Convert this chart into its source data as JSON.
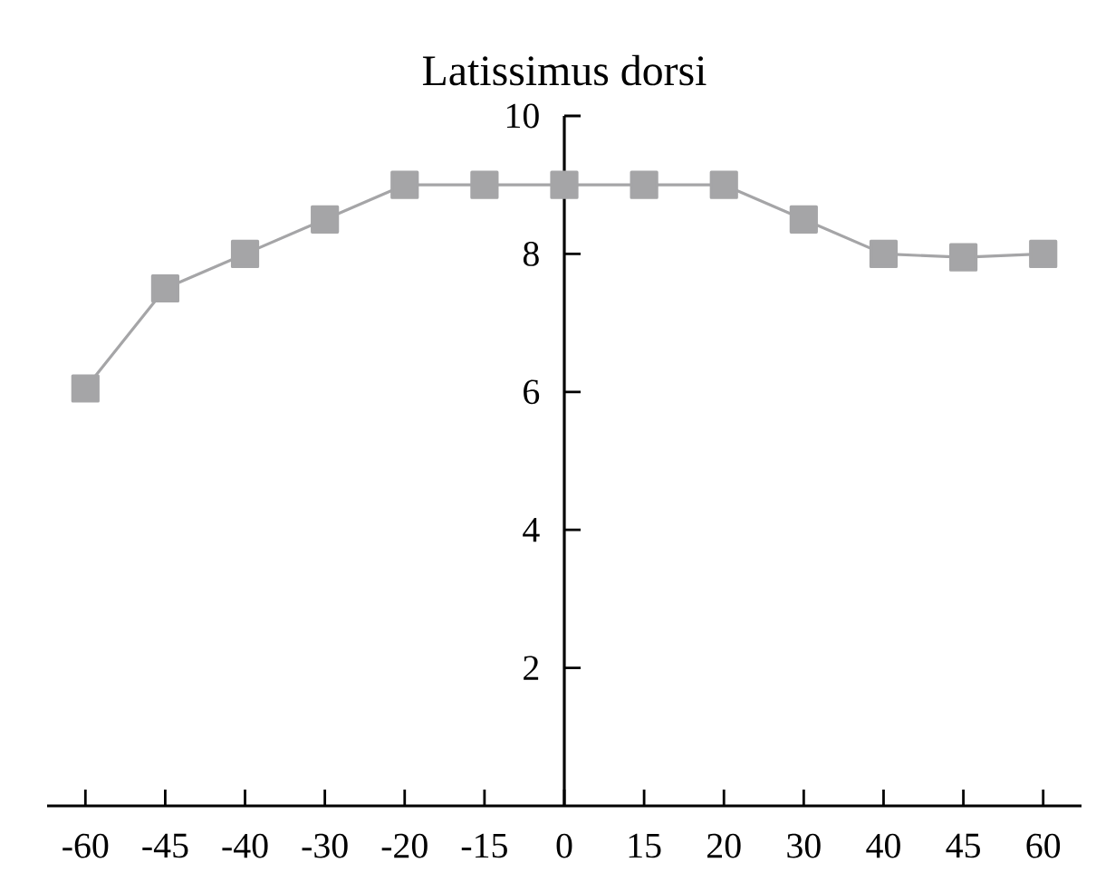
{
  "chart_data": {
    "type": "line",
    "title": "Latissimus dorsi",
    "categories": [
      "-60",
      "-45",
      "-40",
      "-30",
      "-20",
      "-15",
      "0",
      "15",
      "20",
      "30",
      "40",
      "45",
      "60"
    ],
    "series": [
      {
        "color": "#a5a5a7",
        "values": [
          6.05,
          7.5,
          8.0,
          8.5,
          9.0,
          9.0,
          9.0,
          9.0,
          9.0,
          8.5,
          8.0,
          7.95,
          8.0
        ]
      }
    ],
    "ylim": [
      0,
      10
    ],
    "yticks": [
      2,
      4,
      6,
      8,
      10
    ],
    "marker": "square",
    "line_style": "solid",
    "grid": false
  }
}
